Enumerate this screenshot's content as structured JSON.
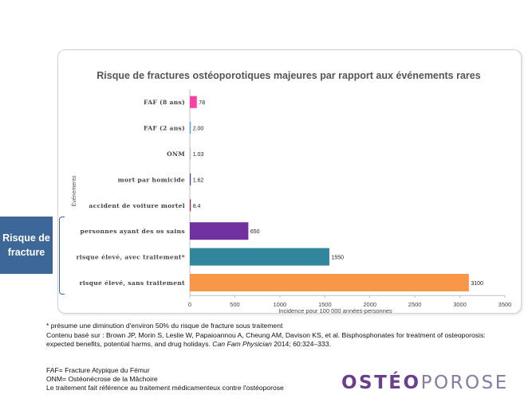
{
  "chart_data": {
    "type": "bar",
    "orientation": "horizontal",
    "title": "Risque de fractures ostéoporotiques majeures par rapport aux événements rares",
    "xlabel": "Incidence pour 100 000 années-personnes",
    "ylabel": "Événements",
    "xlim": [
      0,
      3500
    ],
    "xticks": [
      "0",
      "500",
      "1000",
      "1500",
      "2000",
      "2500",
      "3000",
      "3500"
    ],
    "grid": false,
    "categories": [
      "FAF (8 ans)",
      "FAF (2 ans)",
      "ONM",
      "mort par homicide",
      "accident de voiture mortel",
      "personnes ayant des os sains",
      "risque élevé, avec traitement*",
      "risque élevé, sans traitement"
    ],
    "values": [
      78,
      2,
      1.03,
      1.62,
      8.4,
      650,
      1550,
      3100
    ],
    "value_labels": [
      "78",
      "2.00",
      "1.03",
      "1.62",
      "8.4",
      "650",
      "1550",
      "3100"
    ],
    "colors": [
      "#ff3fa6",
      "#4aa3df",
      "#bfbfbf",
      "#2f4f8f",
      "#a52a2a",
      "#7030a0",
      "#31859c",
      "#f79646"
    ]
  },
  "callout": {
    "label": "Risque de fracture"
  },
  "footnotes": {
    "note": "* présume une diminution d'environ 50% du risque de fracture sous traitement",
    "source_line1": "Contenu basé sur : Brown JP, Morin S, Leslie W, Papaioannou A, Cheung AM, Davison KS, et al. Bisphosphonates for treatment of osteoporosis:",
    "source_line2_pre": "expected benefits, potential harms, and drug holidays. ",
    "source_journal": "Can Fam Physician",
    "source_line2_post": " 2014; 60:324–333.",
    "abbr1": "FAF= Fracture Atypique du Fémur",
    "abbr2": "ONM= Ostéonécrose de la Mâchoire",
    "abbr3": "Le traitement fait référence au traitement médicamenteux contre l'ostéoporose"
  },
  "logo": {
    "part1": "OSTÉO",
    "part2": "POROSE"
  }
}
